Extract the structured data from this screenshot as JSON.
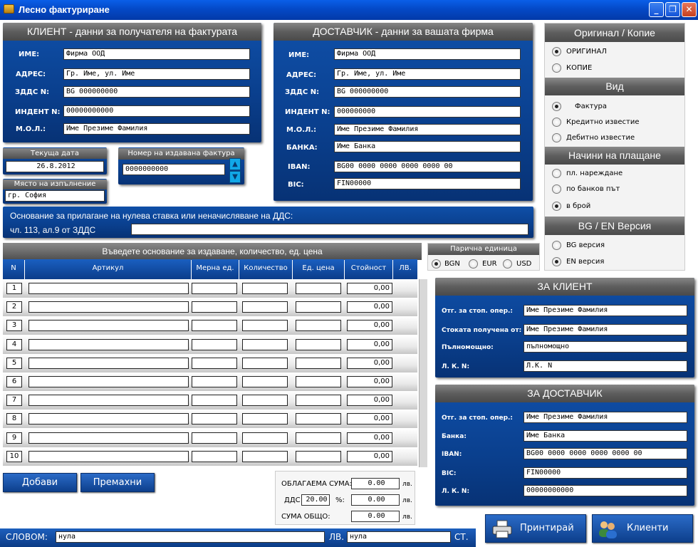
{
  "window": {
    "title": "Лесно фактуриране",
    "min": "_",
    "max": "❐",
    "close": "✕"
  },
  "client": {
    "title": "КЛИЕНТ - данни за получателя на фактурата",
    "fields": [
      {
        "label": "ИМЕ:",
        "value": "Фирма ООД"
      },
      {
        "label": "АДРЕС:",
        "value": "Гр. Име, ул. Име"
      },
      {
        "label": "ЗДДС N:",
        "value": "BG 000000000"
      },
      {
        "label": "ИНДЕНТ N:",
        "value": "00000000000"
      },
      {
        "label": "М.О.Л.:",
        "value": "Име Презиме Фамилия"
      }
    ]
  },
  "supplier": {
    "title": "ДОСТАВЧИК - данни за вашата фирма",
    "fields": [
      {
        "label": "ИМЕ:",
        "value": "Фирма ООД"
      },
      {
        "label": "АДРЕС:",
        "value": "Гр. Име, ул. Име"
      },
      {
        "label": "ЗДДС N:",
        "value": "BG 000000000"
      },
      {
        "label": "ИНДЕНТ N:",
        "value": "000000000"
      },
      {
        "label": "М.О.Л.:",
        "value": "Име Презиме Фамилия"
      },
      {
        "label": "БАНКА:",
        "value": "Име Банка"
      },
      {
        "label": "IBAN:",
        "value": "BG00 0000 0000 0000 0000 00"
      },
      {
        "label": "BIC:",
        "value": "FIN00000"
      }
    ]
  },
  "date": {
    "label": "Текуща дата",
    "value": "26.8.2012"
  },
  "invoice_no": {
    "label": "Номер на издавана фактура",
    "value": "0000000000"
  },
  "place": {
    "label": "Място на изпълнение",
    "value": "гр. София"
  },
  "basis": {
    "label": "Основание за прилагане на нулева ставка или неначисляване на ДДС:",
    "value": "чл. 113, ал.9 от ЗДДС"
  },
  "copy": {
    "title": "Оригинал / Копие",
    "options": [
      {
        "label": "ОРИГИНАЛ",
        "on": true
      },
      {
        "label": "КОПИЕ",
        "on": false
      }
    ]
  },
  "kind": {
    "title": "Вид",
    "options": [
      {
        "label": "Фактура",
        "on": true
      },
      {
        "label": "Кредитно известие",
        "on": false
      },
      {
        "label": "Дебитно известие",
        "on": false
      }
    ]
  },
  "payment": {
    "title": "Начини на плащане",
    "options": [
      {
        "label": "пл. нареждане",
        "on": false
      },
      {
        "label": "по банков път",
        "on": false
      },
      {
        "label": "в брой",
        "on": true
      }
    ]
  },
  "version": {
    "title": "BG / EN Версия",
    "options": [
      {
        "label": "BG версия",
        "on": false
      },
      {
        "label": "EN версия",
        "on": true
      }
    ]
  },
  "currency": {
    "title": "Парична единица",
    "options": [
      {
        "label": "BGN",
        "on": true
      },
      {
        "label": "EUR",
        "on": false
      },
      {
        "label": "USD",
        "on": false
      }
    ]
  },
  "items": {
    "title": "Въведете основание за издаване, количество, ед. цена",
    "headers": [
      "N",
      "Артикул",
      "Мерна ед.",
      "Количество",
      "Ед. цена",
      "Стойност",
      "ЛВ."
    ],
    "rows": [
      {
        "n": "1",
        "v": "0,00"
      },
      {
        "n": "2",
        "v": "0,00"
      },
      {
        "n": "3",
        "v": "0,00"
      },
      {
        "n": "4",
        "v": "0,00"
      },
      {
        "n": "5",
        "v": "0,00"
      },
      {
        "n": "6",
        "v": "0,00"
      },
      {
        "n": "7",
        "v": "0,00"
      },
      {
        "n": "8",
        "v": "0,00"
      },
      {
        "n": "9",
        "v": "0,00"
      },
      {
        "n": "10",
        "v": "0,00"
      }
    ]
  },
  "buttons": {
    "add": "Добави",
    "remove": "Премахни",
    "print": "Принтирай",
    "clients": "Клиенти"
  },
  "totals": {
    "taxable_label": "ОБЛАГАЕМА СУМА:",
    "taxable": "0.00",
    "vat_label": "ДДС",
    "vat_pct": "20.00",
    "pct": "%:",
    "vat": "0.00",
    "total_label": "СУМА ОБЩО:",
    "total": "0.00",
    "cur": "лв."
  },
  "words": {
    "label": "СЛОВОМ:",
    "lv_value": "нула",
    "lv": "ЛВ.",
    "st_value": "нула",
    "st": "СТ."
  },
  "for_client": {
    "title": "ЗА КЛИЕНТ",
    "fields": [
      {
        "label": "Отг. за стоп. опер.:",
        "value": "Име Презиме Фамилия"
      },
      {
        "label": "Стоката получена от:",
        "value": "Име Презиме Фамилия"
      },
      {
        "label": "Пълномощно:",
        "value": "пълномощно"
      },
      {
        "label": "Л. К. N:",
        "value": "Л.К. N"
      }
    ]
  },
  "for_supplier": {
    "title": "ЗА ДОСТАВЧИК",
    "fields": [
      {
        "label": "Отг. за стоп. опер.:",
        "value": "Име Презиме Фамилия"
      },
      {
        "label": "Банка:",
        "value": "Име Банка"
      },
      {
        "label": "IBAN:",
        "value": "BG00 0000 0000 0000 0000 00"
      },
      {
        "label": "BIC:",
        "value": "FIN00000"
      },
      {
        "label": "Л. К. N:",
        "value": "00000000000"
      }
    ]
  }
}
